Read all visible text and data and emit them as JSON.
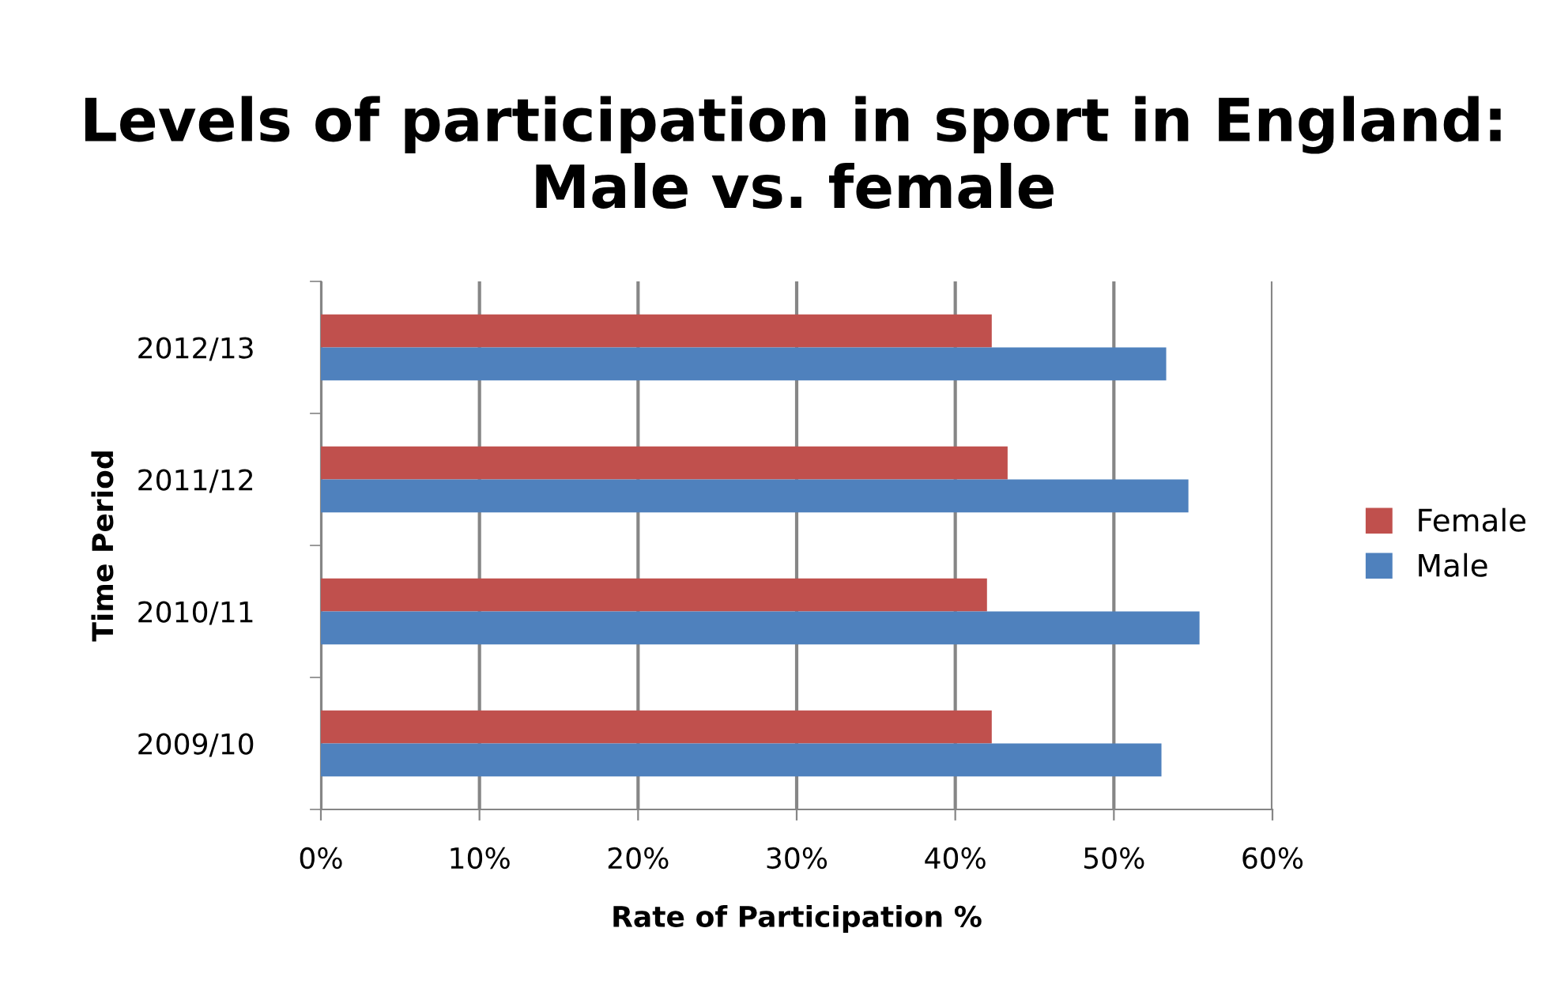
{
  "chart_data": {
    "type": "bar",
    "orientation": "horizontal",
    "title": "Levels of participation in sport in England: Male vs. female",
    "xlabel": "Rate of Participation %",
    "ylabel": "Time Period",
    "categories": [
      "2012/13",
      "2011/12",
      "2010/11",
      "2009/10"
    ],
    "series": [
      {
        "name": "Female",
        "color": "#c0504d",
        "values": [
          42.3,
          43.3,
          42.0,
          42.3
        ]
      },
      {
        "name": "Male",
        "color": "#4f81bd",
        "values": [
          53.3,
          54.7,
          55.4,
          53.0
        ]
      }
    ],
    "xlim": [
      0,
      60
    ],
    "xticks": [
      {
        "value": 0,
        "label": "0%"
      },
      {
        "value": 10,
        "label": "10%"
      },
      {
        "value": 20,
        "label": "20%"
      },
      {
        "value": 30,
        "label": "30%"
      },
      {
        "value": 40,
        "label": "40%"
      },
      {
        "value": 50,
        "label": "50%"
      },
      {
        "value": 60,
        "label": "60%"
      }
    ],
    "grid": "x",
    "legend": "right"
  }
}
